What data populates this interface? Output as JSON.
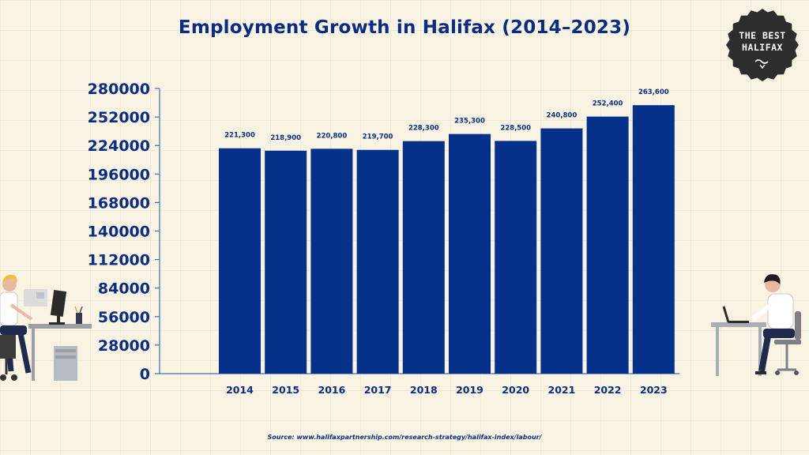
{
  "header": {
    "title": "Employment Growth in Halifax (2014–2023)"
  },
  "badge": {
    "line1": "THE BEST",
    "line2": "HALIFAX"
  },
  "footer": {
    "source": "Source: www.halifaxpartnership.com/research-strategy/halifax-index/labour/"
  },
  "colors": {
    "bar": "#06318a",
    "text": "#0a2d84",
    "background": "#f8f3e2",
    "badge": "#2d2d2d"
  },
  "chart_data": {
    "type": "bar",
    "title": "Employment Growth in Halifax (2014–2023)",
    "xlabel": "",
    "ylabel": "",
    "categories": [
      "2014",
      "2015",
      "2016",
      "2017",
      "2018",
      "2019",
      "2020",
      "2021",
      "2022",
      "2023"
    ],
    "values": [
      221300,
      218900,
      220800,
      219700,
      228300,
      235300,
      228500,
      240800,
      252400,
      263600
    ],
    "data_labels": [
      "221,300",
      "218,900",
      "220,800",
      "219,700",
      "228,300",
      "235,300",
      "228,500",
      "240,800",
      "252,400",
      "263,600"
    ],
    "yticks": [
      "0",
      "28000",
      "56000",
      "84000",
      "112000",
      "140000",
      "168000",
      "196000",
      "224000",
      "252000",
      "280000"
    ],
    "ylim": [
      0,
      280000
    ],
    "grid": false,
    "legend": "none"
  }
}
